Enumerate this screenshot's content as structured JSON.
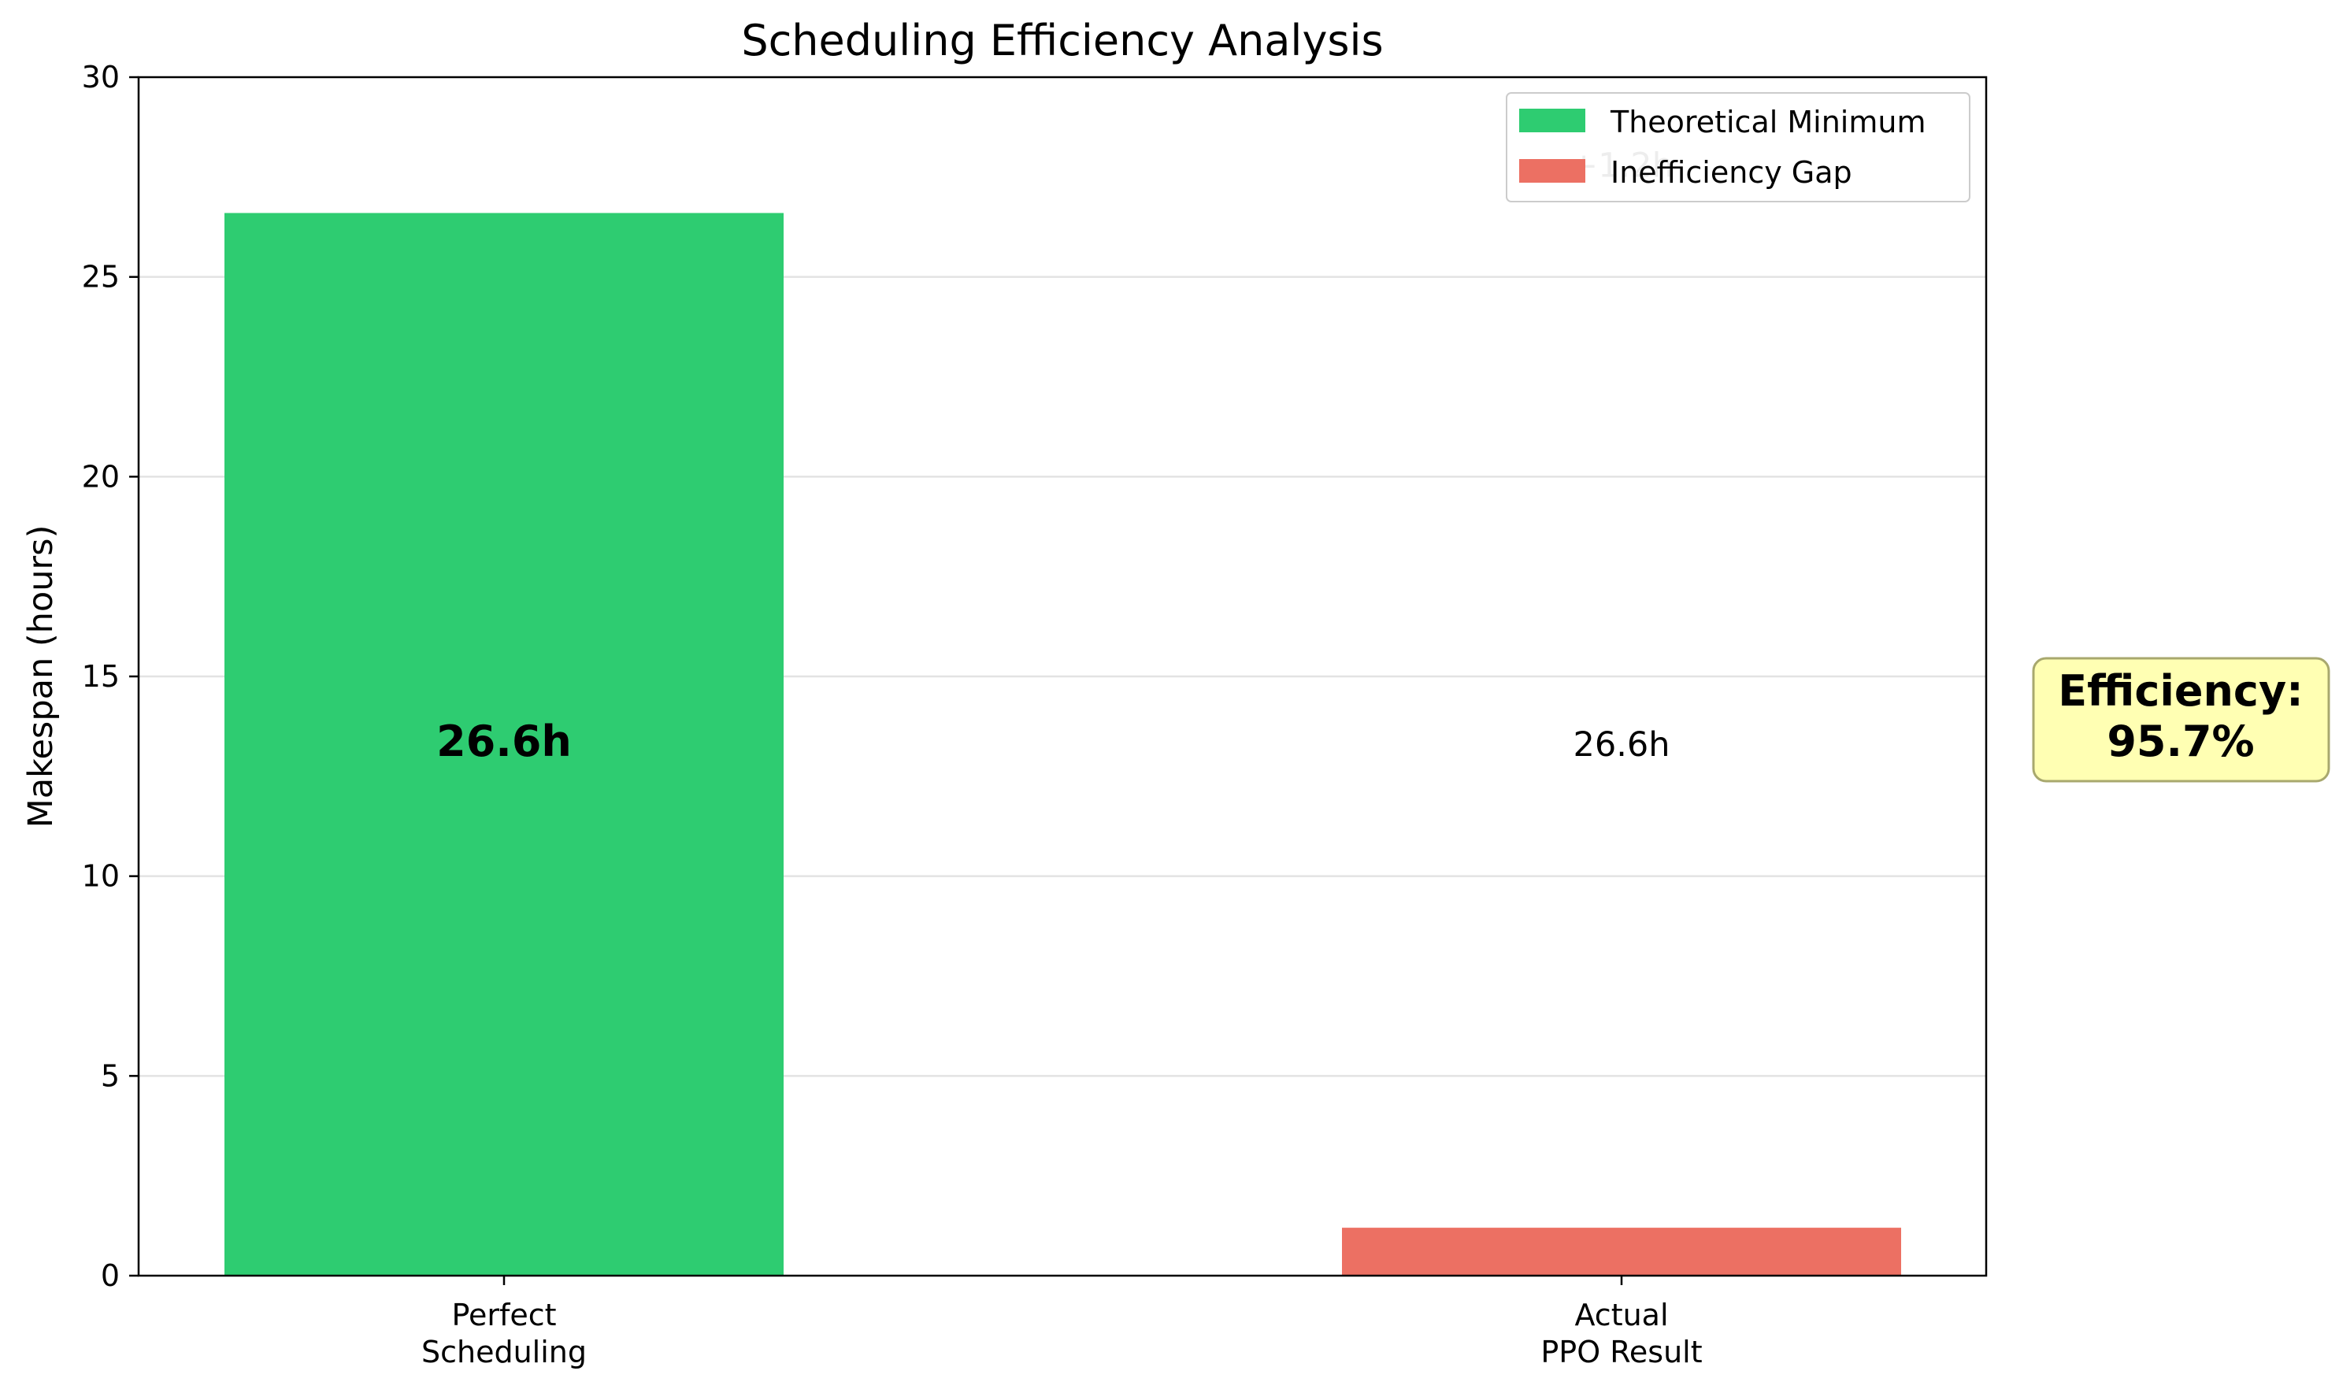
{
  "chart_data": {
    "type": "bar",
    "title": "Scheduling Efficiency Analysis",
    "xlabel": "",
    "ylabel": "Makespan (hours)",
    "ylim": [
      0,
      30
    ],
    "yticks": [
      "0",
      "5",
      "10",
      "15",
      "20",
      "25",
      "30"
    ],
    "grid": "horizontal",
    "categories": [
      "Perfect\nScheduling",
      "Actual\nPPO Result"
    ],
    "series": [
      {
        "name": "Theoretical Minimum",
        "color": "#2ecc71",
        "values": [
          26.6,
          null
        ]
      },
      {
        "name": "Inefficiency Gap",
        "color": "#ec7063",
        "values": [
          null,
          1.2
        ]
      }
    ],
    "data_labels": [
      {
        "text": "26.6h",
        "category": 0,
        "y": 13.3,
        "style": "bold"
      },
      {
        "text": "26.6h",
        "category": 1,
        "y": 13.3,
        "style": "normal"
      },
      {
        "text": "+1.2h",
        "category": 1,
        "y": 27.8,
        "style": "faded"
      }
    ],
    "legend_position": "top-right",
    "annotation": {
      "line1": "Efficiency:",
      "line2": "95.7%",
      "background": "#ffffb3",
      "border": "#a8a86e"
    }
  }
}
